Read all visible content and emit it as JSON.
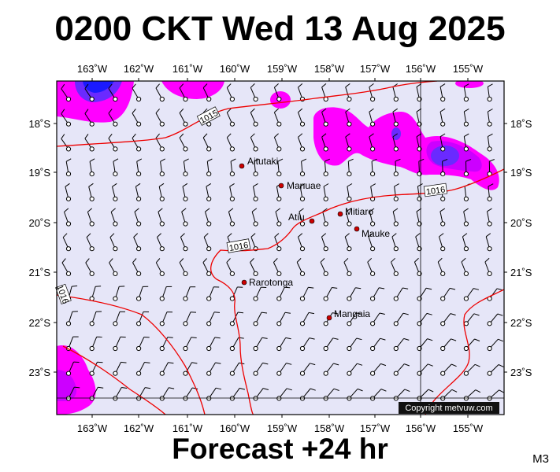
{
  "title": "0200 CKT Wed 13 Aug 2025",
  "subtitle": "Forecast +24 hr",
  "corner_label": "M3",
  "copyright": "Copyright metvuw.com",
  "colors": {
    "background": "#e6e6f8",
    "isobar": "#ee0000",
    "rain_light": "#ff00ff",
    "rain_medium": "#cc00ff",
    "rain_heavy": "#6a2aff",
    "rain_extreme": "#1a1aff",
    "city_dot": "#cc0000"
  },
  "axes": {
    "lon_labels": [
      "163˚W",
      "162˚W",
      "161˚W",
      "160˚W",
      "159˚W",
      "158˚W",
      "157˚W",
      "156˚W",
      "155˚W"
    ],
    "lat_labels": [
      "18˚S",
      "19˚S",
      "20˚S",
      "21˚S",
      "22˚S",
      "23˚S"
    ]
  },
  "isobar_labels": [
    "1015",
    "1016",
    "1016",
    "1016"
  ],
  "places": [
    {
      "name": "Aitutaki"
    },
    {
      "name": "Manuae"
    },
    {
      "name": "Mitiaro"
    },
    {
      "name": "Atiu"
    },
    {
      "name": "Mauke"
    },
    {
      "name": "Rarotonga"
    },
    {
      "name": "Mangaia"
    }
  ]
}
